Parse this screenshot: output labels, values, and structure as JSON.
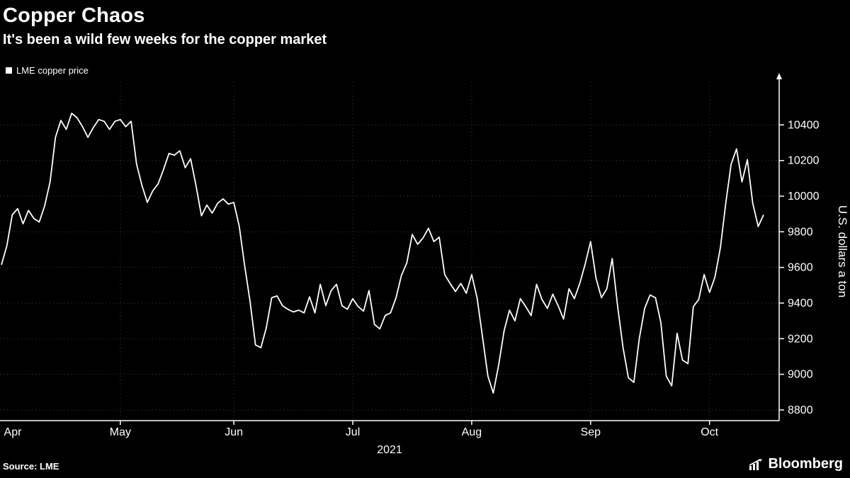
{
  "header": {
    "title": "Copper Chaos",
    "subtitle": "It's been a wild few weeks for the copper market"
  },
  "footer": {
    "source_label": "Source: LME",
    "brand": "Bloomberg"
  },
  "chart_data": {
    "type": "line",
    "title": "Copper Chaos",
    "subtitle": "It's been a wild few weeks for the copper market",
    "xlabel": "2021",
    "ylabel": "U.S. dollars a ton",
    "ylim": [
      8740,
      10640
    ],
    "yticks": [
      8800,
      9000,
      9200,
      9400,
      9600,
      9800,
      10000,
      10200,
      10400
    ],
    "x_tick_labels": [
      "Apr",
      "May",
      "Jun",
      "Jul",
      "Aug",
      "Sep",
      "Oct"
    ],
    "grid": "dotted",
    "legend_position": "top-left",
    "colors": {
      "background": "#000000",
      "line": "#ffffff",
      "grid": "#3f3f3f",
      "text": "#ffffff"
    },
    "series": [
      {
        "name": "LME copper price",
        "color": "#ffffff",
        "x": [
          "2021-04-01",
          "2021-04-02",
          "2021-04-05",
          "2021-04-06",
          "2021-04-07",
          "2021-04-08",
          "2021-04-09",
          "2021-04-12",
          "2021-04-13",
          "2021-04-14",
          "2021-04-15",
          "2021-04-16",
          "2021-04-19",
          "2021-04-20",
          "2021-04-21",
          "2021-04-22",
          "2021-04-23",
          "2021-04-26",
          "2021-04-27",
          "2021-04-28",
          "2021-04-29",
          "2021-04-30",
          "2021-05-03",
          "2021-05-04",
          "2021-05-05",
          "2021-05-06",
          "2021-05-07",
          "2021-05-10",
          "2021-05-11",
          "2021-05-12",
          "2021-05-13",
          "2021-05-14",
          "2021-05-17",
          "2021-05-18",
          "2021-05-19",
          "2021-05-20",
          "2021-05-21",
          "2021-05-24",
          "2021-05-25",
          "2021-05-26",
          "2021-05-27",
          "2021-05-28",
          "2021-05-31",
          "2021-06-01",
          "2021-06-02",
          "2021-06-03",
          "2021-06-04",
          "2021-06-07",
          "2021-06-08",
          "2021-06-09",
          "2021-06-10",
          "2021-06-11",
          "2021-06-14",
          "2021-06-15",
          "2021-06-16",
          "2021-06-17",
          "2021-06-18",
          "2021-06-21",
          "2021-06-22",
          "2021-06-23",
          "2021-06-24",
          "2021-06-25",
          "2021-06-28",
          "2021-06-29",
          "2021-06-30",
          "2021-07-01",
          "2021-07-02",
          "2021-07-05",
          "2021-07-06",
          "2021-07-07",
          "2021-07-08",
          "2021-07-09",
          "2021-07-12",
          "2021-07-13",
          "2021-07-14",
          "2021-07-15",
          "2021-07-16",
          "2021-07-19",
          "2021-07-20",
          "2021-07-21",
          "2021-07-22",
          "2021-07-23",
          "2021-07-26",
          "2021-07-27",
          "2021-07-28",
          "2021-07-29",
          "2021-07-30",
          "2021-08-02",
          "2021-08-03",
          "2021-08-04",
          "2021-08-05",
          "2021-08-06",
          "2021-08-09",
          "2021-08-10",
          "2021-08-11",
          "2021-08-12",
          "2021-08-13",
          "2021-08-16",
          "2021-08-17",
          "2021-08-18",
          "2021-08-19",
          "2021-08-20",
          "2021-08-23",
          "2021-08-24",
          "2021-08-25",
          "2021-08-26",
          "2021-08-27",
          "2021-08-30",
          "2021-08-31",
          "2021-09-01",
          "2021-09-02",
          "2021-09-03",
          "2021-09-06",
          "2021-09-07",
          "2021-09-08",
          "2021-09-09",
          "2021-09-10",
          "2021-09-13",
          "2021-09-14",
          "2021-09-15",
          "2021-09-16",
          "2021-09-17",
          "2021-09-20",
          "2021-09-21",
          "2021-09-22",
          "2021-09-23",
          "2021-09-24",
          "2021-09-27",
          "2021-09-28",
          "2021-09-29",
          "2021-09-30",
          "2021-10-01",
          "2021-10-04",
          "2021-10-05",
          "2021-10-06",
          "2021-10-07",
          "2021-10-08",
          "2021-10-11",
          "2021-10-12",
          "2021-10-13",
          "2021-10-14",
          "2021-10-15"
        ],
        "values": [
          9615,
          9720,
          9895,
          9930,
          9845,
          9920,
          9875,
          9855,
          9945,
          10080,
          10330,
          10425,
          10375,
          10465,
          10440,
          10390,
          10330,
          10385,
          10430,
          10420,
          10375,
          10420,
          10430,
          10390,
          10420,
          10180,
          10060,
          9965,
          10030,
          10070,
          10150,
          10240,
          10230,
          10255,
          10160,
          10210,
          10060,
          9890,
          9950,
          9905,
          9960,
          9985,
          9955,
          9965,
          9830,
          9610,
          9410,
          9165,
          9150,
          9260,
          9430,
          9440,
          9385,
          9365,
          9350,
          9360,
          9345,
          9435,
          9345,
          9505,
          9385,
          9470,
          9505,
          9385,
          9365,
          9425,
          9380,
          9355,
          9470,
          9280,
          9255,
          9330,
          9345,
          9430,
          9555,
          9625,
          9785,
          9730,
          9765,
          9820,
          9745,
          9770,
          9560,
          9510,
          9465,
          9510,
          9455,
          9560,
          9430,
          9210,
          8990,
          8895,
          9055,
          9245,
          9360,
          9300,
          9425,
          9380,
          9330,
          9505,
          9420,
          9370,
          9450,
          9385,
          9310,
          9480,
          9425,
          9510,
          9620,
          9745,
          9540,
          9430,
          9480,
          9650,
          9380,
          9150,
          8980,
          8955,
          9200,
          9370,
          9445,
          9430,
          9290,
          8990,
          8935,
          9230,
          9080,
          9060,
          9380,
          9420,
          9560,
          9460,
          9545,
          9710,
          9960,
          10180,
          10265,
          10080,
          10205,
          9960,
          9830,
          9895
        ]
      }
    ]
  }
}
